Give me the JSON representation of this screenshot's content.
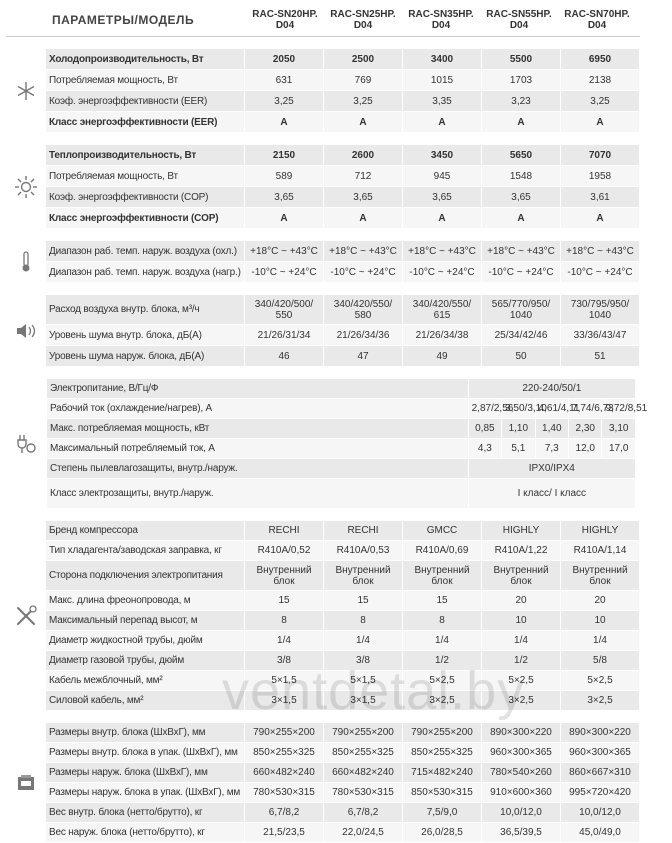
{
  "header": {
    "title": "ПАРАМЕТРЫ/МОДЕЛЬ",
    "models": [
      "RAC-SN20HP. D04",
      "RAC-SN25HP. D04",
      "RAC-SN35HP. D04",
      "RAC-SN55HP. D04",
      "RAC-SN70HP. D04"
    ]
  },
  "sections": [
    {
      "rows": [
        {
          "label": "Холодопроизводительность, Вт",
          "bold": true,
          "values": [
            "2050",
            "2500",
            "3400",
            "5500",
            "6950"
          ]
        },
        {
          "label": "Потребляемая мощность, Вт",
          "values": [
            "631",
            "769",
            "1015",
            "1703",
            "2138"
          ]
        },
        {
          "label": "Коэф. энергоэффективности (EER)",
          "values": [
            "3,25",
            "3,25",
            "3,35",
            "3,23",
            "3,25"
          ]
        },
        {
          "label": "Класс энергоэффективности (EER)",
          "bold": true,
          "values": [
            "A",
            "A",
            "A",
            "A",
            "A"
          ]
        }
      ]
    },
    {
      "rows": [
        {
          "label": "Теплопроизводительность, Вт",
          "bold": true,
          "values": [
            "2150",
            "2600",
            "3450",
            "5650",
            "7070"
          ]
        },
        {
          "label": "Потребляемая мощность, Вт",
          "values": [
            "589",
            "712",
            "945",
            "1548",
            "1958"
          ]
        },
        {
          "label": "Коэф. энергоэффективности (COP)",
          "values": [
            "3,65",
            "3,65",
            "3,65",
            "3,65",
            "3,61"
          ]
        },
        {
          "label": "Класс энергоэффективности (COP)",
          "bold": true,
          "values": [
            "A",
            "A",
            "A",
            "A",
            "A"
          ]
        }
      ]
    },
    {
      "rows": [
        {
          "label": "Диапазон раб. темп. наруж. воздуха (охл.)",
          "values": [
            "+18°C ~ +43°C",
            "+18°C ~ +43°C",
            "+18°C ~ +43°C",
            "+18°C ~ +43°C",
            "+18°C ~ +43°C"
          ]
        },
        {
          "label": "Диапазон раб. темп. наруж. воздуха (нагр.)",
          "values": [
            "-10°C ~ +24°C",
            "-10°C ~ +24°C",
            "-10°C ~ +24°C",
            "-10°C ~ +24°C",
            "-10°C ~ +24°C"
          ]
        }
      ]
    },
    {
      "rows": [
        {
          "label": "Расход воздуха внутр. блока, м³/ч",
          "values": [
            "340/420/500/ 550",
            "340/420/550/ 580",
            "340/420/550/ 615",
            "565/770/950/ 1040",
            "730/795/950/ 1040"
          ]
        },
        {
          "label": "Уровень шума внутр. блока, дБ(А)",
          "values": [
            "21/26/31/34",
            "21/26/34/36",
            "21/26/34/38",
            "25/34/42/46",
            "33/36/43/47"
          ]
        },
        {
          "label": "Уровень шума наруж. блока, дБ(А)",
          "values": [
            "46",
            "47",
            "49",
            "50",
            "51"
          ]
        }
      ]
    },
    {
      "rows": [
        {
          "label": "Электропитание, В/Гц/Ф",
          "values": [
            "220-240/50/1"
          ]
        },
        {
          "label": "Рабочий ток (охлаждение/нагрев), А",
          "values": [
            "2,87/2,56",
            "3,50/3,10",
            "4,61/4,11",
            "7,74/6,73",
            "9,72/8,51"
          ]
        },
        {
          "label": "Макс. потребляемая мощность, кВт",
          "values": [
            "0,85",
            "1,10",
            "1,40",
            "2,30",
            "3,10"
          ]
        },
        {
          "label": "Максимальный потребляемый ток, А",
          "values": [
            "4,3",
            "5,1",
            "7,3",
            "12,0",
            "17,0"
          ]
        },
        {
          "label": "Степень пылевлагозащиты, внутр./наруж.",
          "values": [
            "IPX0/IPX4"
          ]
        },
        {
          "label": "Класс электрозащиты, внутр./наруж.",
          "values": [
            "I класс/ I класс"
          ]
        }
      ]
    },
    {
      "rows": [
        {
          "label": "Бренд компрессора",
          "values": [
            "RECHI",
            "RECHI",
            "GMCC",
            "HIGHLY",
            "HIGHLY"
          ]
        },
        {
          "label": "Тип хладагента/заводская заправка, кг",
          "values": [
            "R410A/0,52",
            "R410A/0,53",
            "R410A/0,69",
            "R410A/1,22",
            "R410A/1,14"
          ]
        },
        {
          "label": "Сторона подключения электропитания",
          "values": [
            "Внутренний блок",
            "Внутренний блок",
            "Внутренний блок",
            "Внутренний блок",
            "Внутренний блок"
          ]
        },
        {
          "label": "Макс. длина фреонопровода, м",
          "values": [
            "15",
            "15",
            "15",
            "20",
            "20"
          ]
        },
        {
          "label": "Максимальный перепад высот, м",
          "values": [
            "8",
            "8",
            "8",
            "10",
            "10"
          ]
        },
        {
          "label": "Диаметр жидкостной трубы, дюйм",
          "values": [
            "1/4",
            "1/4",
            "1/4",
            "1/4",
            "1/4"
          ]
        },
        {
          "label": "Диаметр газовой трубы, дюйм",
          "values": [
            "3/8",
            "3/8",
            "1/2",
            "1/2",
            "5/8"
          ]
        },
        {
          "label": "Кабель межблочный, мм²",
          "values": [
            "5×1,5",
            "5×1,5",
            "5×2,5",
            "5×2,5",
            "5×2,5"
          ]
        },
        {
          "label": "Силовой кабель, мм²",
          "values": [
            "3×1,5",
            "3×1,5",
            "3×2,5",
            "3×2,5",
            "3×2,5"
          ]
        }
      ]
    },
    {
      "rows": [
        {
          "label": "Размеры внутр. блока (ШхВхГ), мм",
          "values": [
            "790×255×200",
            "790×255×200",
            "790×255×200",
            "890×300×220",
            "890×300×220"
          ]
        },
        {
          "label": "Размеры внутр. блока в упак. (ШхВхГ), мм",
          "values": [
            "850×255×325",
            "850×255×325",
            "850×255×325",
            "960×300×365",
            "960×300×365"
          ]
        },
        {
          "label": "Размеры наруж. блока (ШхВхГ), мм",
          "values": [
            "660×482×240",
            "660×482×240",
            "715×482×240",
            "780×540×260",
            "860×667×310"
          ]
        },
        {
          "label": "Размеры наруж. блока в упак. (ШхВхГ), мм",
          "values": [
            "780×530×315",
            "780×530×315",
            "850×530×315",
            "910×600×360",
            "995×720×420"
          ]
        },
        {
          "label": "Вес внутр. блока (нетто/брутто), кг",
          "values": [
            "6,7/8,2",
            "6,7/8,2",
            "7,5/9,0",
            "10,0/12,0",
            "10,0/12,0"
          ]
        },
        {
          "label": "Вес наруж. блока (нетто/брутто), кг",
          "values": [
            "21,5/23,5",
            "22,0/24,5",
            "26,0/28,5",
            "36,5/39,5",
            "45,0/49,0"
          ]
        }
      ]
    }
  ],
  "watermark": "ventdetal.by"
}
